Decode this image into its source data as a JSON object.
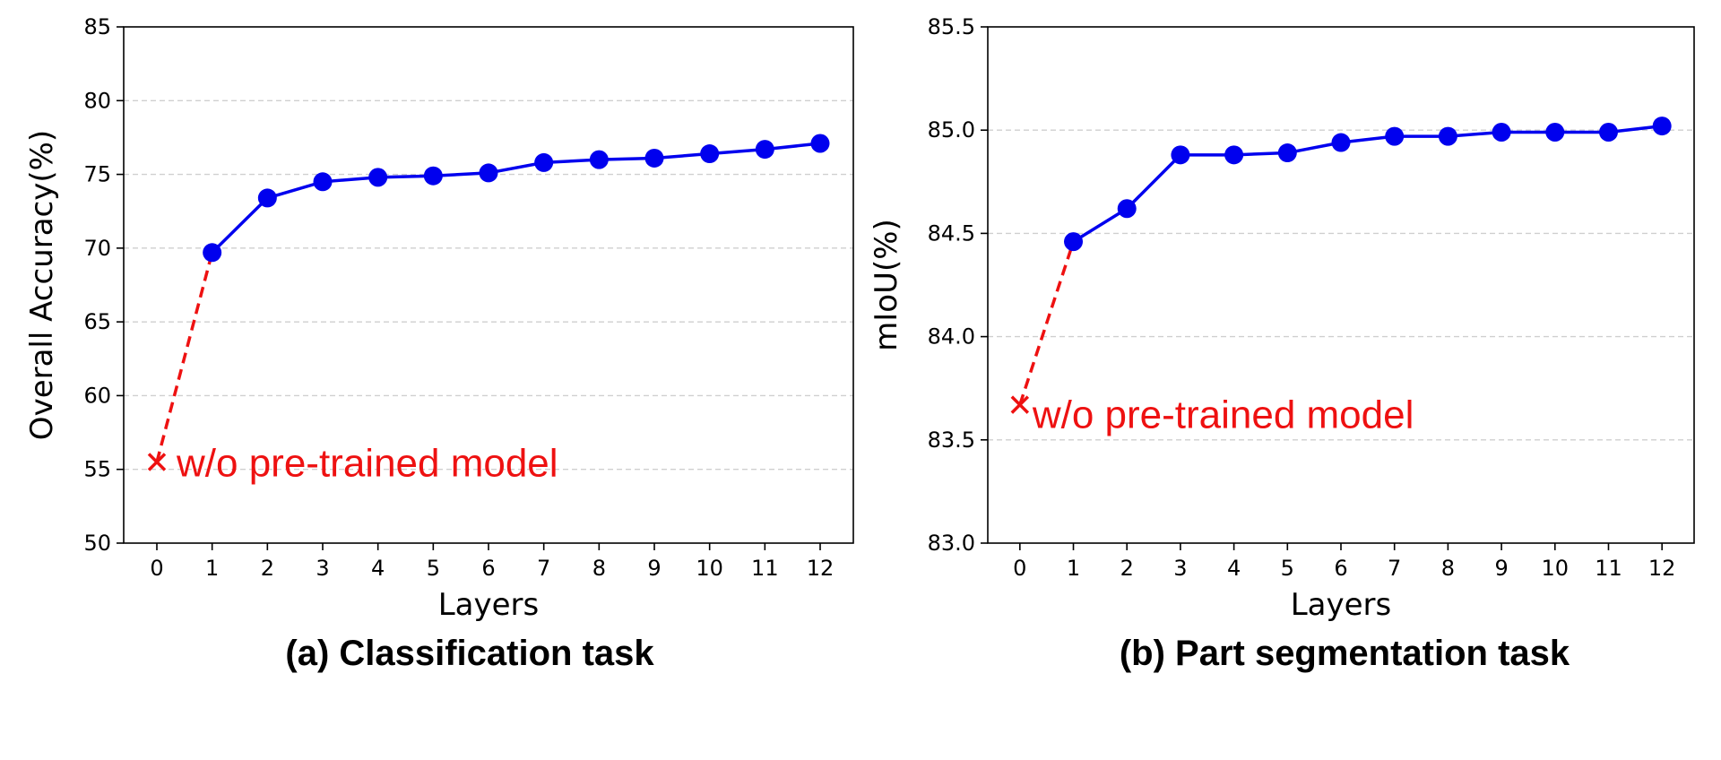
{
  "chart_data": [
    {
      "type": "line",
      "caption": "(a) Classification task",
      "xlabel": "Layers",
      "ylabel": "Overall Accuracy(%)",
      "x": [
        0,
        1,
        2,
        3,
        4,
        5,
        6,
        7,
        8,
        9,
        10,
        11,
        12
      ],
      "x_ticks": [
        "0",
        "1",
        "2",
        "3",
        "4",
        "5",
        "6",
        "7",
        "8",
        "9",
        "10",
        "11",
        "12"
      ],
      "ylim": [
        50,
        85
      ],
      "y_ticks": [
        "50",
        "55",
        "60",
        "65",
        "70",
        "75",
        "80",
        "85"
      ],
      "grid": "y-dashed",
      "series": [
        {
          "x": [
            1,
            2,
            3,
            4,
            5,
            6,
            7,
            8,
            9,
            10,
            11,
            12
          ],
          "values": [
            69.7,
            73.4,
            74.5,
            74.8,
            74.9,
            75.1,
            75.8,
            76.0,
            76.1,
            76.4,
            76.7,
            77.1
          ],
          "color": "#0000ee",
          "style": "solid-circle"
        }
      ],
      "baseline": {
        "x": 0,
        "value": 55.5,
        "label": "w/o pre-trained model",
        "color": "#ee1111",
        "marker": "x",
        "line": "dashed"
      }
    },
    {
      "type": "line",
      "caption": "(b) Part segmentation task",
      "xlabel": "Layers",
      "ylabel": "mIoU(%)",
      "x": [
        0,
        1,
        2,
        3,
        4,
        5,
        6,
        7,
        8,
        9,
        10,
        11,
        12
      ],
      "x_ticks": [
        "0",
        "1",
        "2",
        "3",
        "4",
        "5",
        "6",
        "7",
        "8",
        "9",
        "10",
        "11",
        "12"
      ],
      "ylim": [
        83.0,
        85.5
      ],
      "y_ticks": [
        "83.0",
        "83.5",
        "84.0",
        "84.5",
        "85.0",
        "85.5"
      ],
      "grid": "y-dashed",
      "series": [
        {
          "x": [
            1,
            2,
            3,
            4,
            5,
            6,
            7,
            8,
            9,
            10,
            11,
            12
          ],
          "values": [
            84.46,
            84.62,
            84.88,
            84.88,
            84.89,
            84.94,
            84.97,
            84.97,
            84.99,
            84.99,
            84.99,
            85.02
          ],
          "color": "#0000ee",
          "style": "solid-circle"
        }
      ],
      "baseline": {
        "x": 0,
        "value": 83.67,
        "label": "w/o pre-trained model",
        "color": "#ee1111",
        "marker": "x",
        "line": "dashed"
      }
    }
  ]
}
